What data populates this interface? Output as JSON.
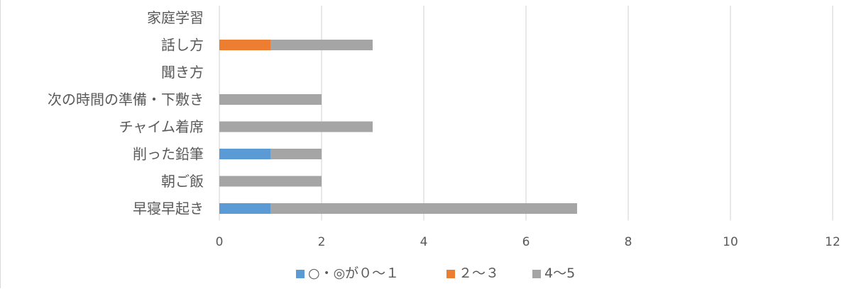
{
  "chart_data": {
    "type": "bar",
    "orientation": "horizontal",
    "stacked": true,
    "categories": [
      "家庭学習",
      "話し方",
      "聞き方",
      "次の時間の準備・下敷き",
      "チャイム着席",
      "削った鉛筆",
      "朝ご飯",
      "早寝早起き"
    ],
    "series": [
      {
        "name": "○・◎が０～１",
        "color": "#5b9bd5",
        "values": [
          0,
          0,
          0,
          0,
          0,
          1,
          0,
          1
        ]
      },
      {
        "name": "２～３",
        "color": "#ed7d31",
        "values": [
          0,
          1,
          0,
          0,
          0,
          0,
          0,
          0
        ]
      },
      {
        "name": "4～5",
        "color": "#a5a5a5",
        "values": [
          0,
          2,
          0,
          2,
          3,
          1,
          2,
          6
        ]
      }
    ],
    "xlim": [
      0,
      12
    ],
    "xticks": [
      0,
      2,
      4,
      6,
      8,
      10,
      12
    ],
    "grid": true,
    "legend_position": "bottom"
  }
}
